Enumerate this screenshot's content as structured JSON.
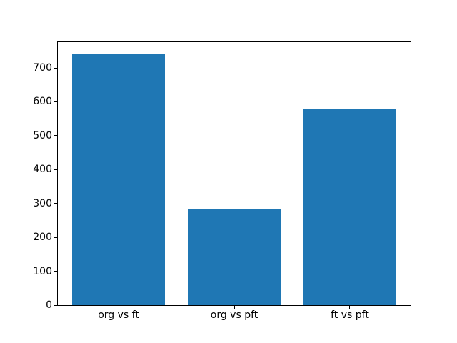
{
  "figure": {
    "background_color": "#ffffff",
    "axis_color": "#000000",
    "text_color": "#000000"
  },
  "chart_data": {
    "type": "bar",
    "title": "",
    "xlabel": "",
    "ylabel": "",
    "categories": [
      "org vs ft",
      "org vs pft",
      "ft vs pft"
    ],
    "values": [
      740,
      285,
      578
    ],
    "yticks": [
      0,
      100,
      200,
      300,
      400,
      500,
      600,
      700
    ],
    "ylim": [
      0,
      776
    ],
    "xlim": [
      -0.525,
      2.525
    ],
    "bar_width_fraction": 0.8,
    "bar_color": "#1f77b4",
    "grid": false,
    "legend": null
  }
}
